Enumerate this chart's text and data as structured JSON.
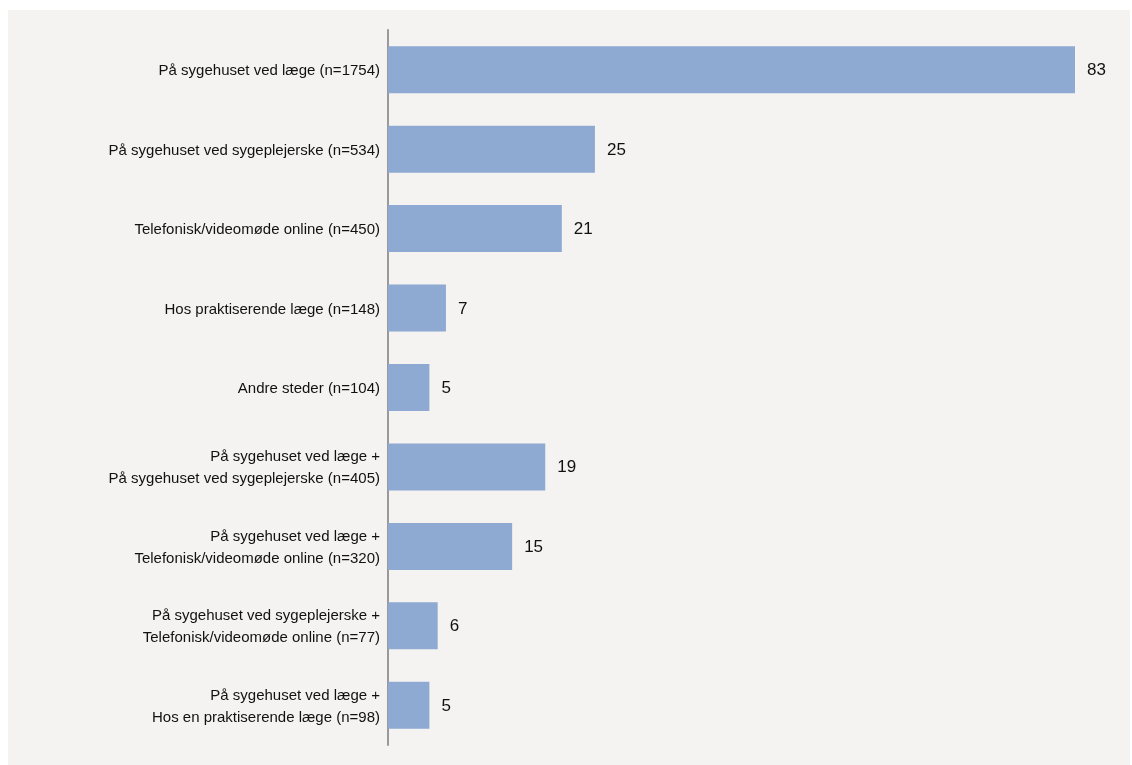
{
  "chart_data": {
    "type": "bar",
    "orientation": "horizontal",
    "categories": [
      "På sygehuset ved læge (n=1754)",
      "På sygehuset ved sygeplejerske (n=534)",
      "Telefonisk/videomøde online (n=450)",
      "Hos praktiserende læge (n=148)",
      "Andre steder (n=104)",
      "På sygehuset ved læge +\nPå sygehuset ved sygeplejerske (n=405)",
      "På sygehuset ved læge +\nTelefonisk/videomøde online (n=320)",
      "På sygehuset ved sygeplejerske +\nTelefonisk/videomøde online (n=77)",
      "På sygehuset ved læge +\nHos en praktiserende læge (n=98)"
    ],
    "values": [
      83,
      25,
      21,
      7,
      5,
      19,
      15,
      6,
      5
    ],
    "color": "#8eaad2",
    "data_labels": true
  }
}
